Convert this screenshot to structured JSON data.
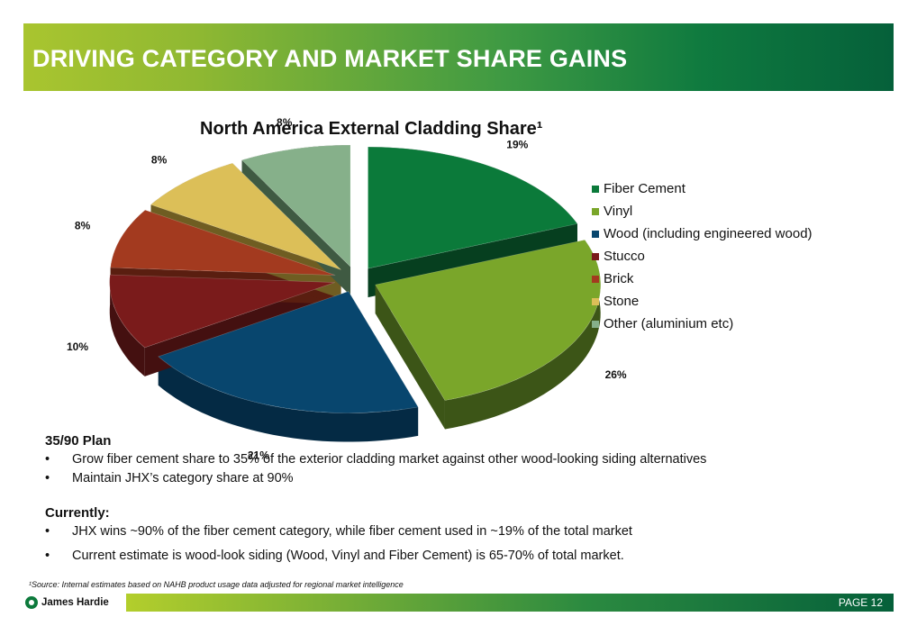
{
  "header": {
    "title": "DRIVING CATEGORY AND MARKET SHARE GAINS"
  },
  "chart_data": {
    "type": "pie",
    "title": "North America External Cladding Share¹",
    "legend_position": "right",
    "slices": [
      {
        "label": "Fiber Cement",
        "value": 19,
        "display": "19%",
        "color": "#0b7a3a",
        "side": "#063f1f"
      },
      {
        "label": "Vinyl",
        "value": 26,
        "display": "26%",
        "color": "#7aa62a",
        "side": "#3c5517"
      },
      {
        "label": "Wood (including engineered wood)",
        "value": 21,
        "display": "21%",
        "color": "#08466e",
        "side": "#042a44"
      },
      {
        "label": "Stucco",
        "value": 10,
        "display": "10%",
        "color": "#7a1b1b",
        "side": "#441010"
      },
      {
        "label": "Brick",
        "value": 8,
        "display": "8%",
        "color": "#a33a1f",
        "side": "#5a1e10"
      },
      {
        "label": "Stone",
        "value": 8,
        "display": "8%",
        "color": "#dcbf58",
        "side": "#6f5d22"
      },
      {
        "label": "Other (aluminium etc)",
        "value": 8,
        "display": "8%",
        "color": "#86b08a",
        "side": "#3f5a42"
      }
    ]
  },
  "plan": {
    "title": "35/90 Plan",
    "bullets": [
      "Grow fiber cement share to 35% of the exterior cladding market against other wood-looking siding alternatives",
      "Maintain JHX’s category share at 90%"
    ]
  },
  "currently": {
    "title": "Currently:",
    "bullets": [
      "JHX wins ~90% of the fiber cement category, while fiber cement used in ~19% of the total market",
      "Current estimate is wood-look siding (Wood, Vinyl and Fiber Cement) is 65-70% of total market."
    ]
  },
  "bullet_char": "•",
  "footnote": "¹Source: Internal estimates based on NAHB product usage data adjusted for regional market intelligence",
  "footer": {
    "brand": "James Hardie",
    "page_label": "PAGE   12"
  }
}
